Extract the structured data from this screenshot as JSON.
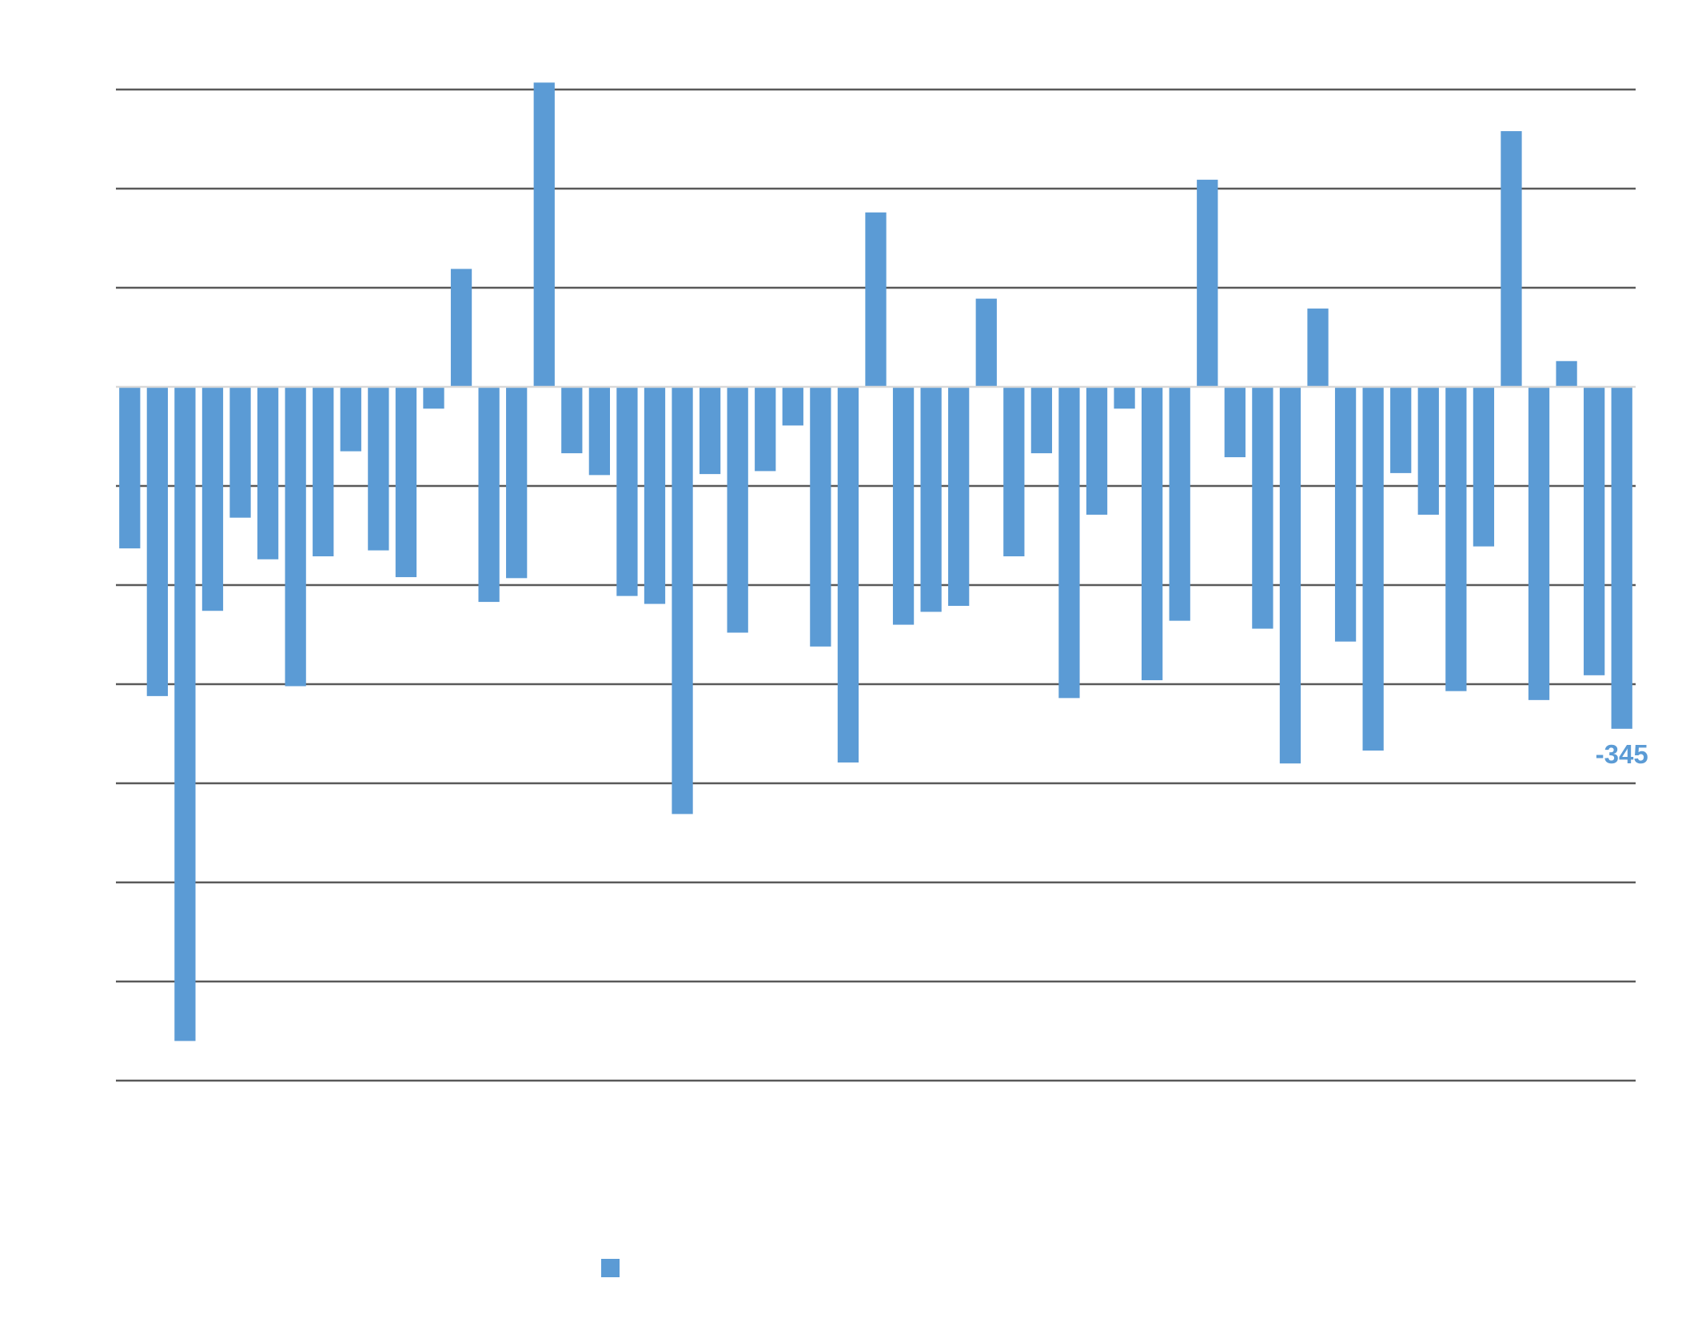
{
  "chart_data": {
    "type": "bar",
    "title": "",
    "xlabel": "",
    "ylabel": "",
    "ylim": [
      -700,
      300
    ],
    "grid": true,
    "legend_position": "bottom",
    "bar_color": "#5B9BD5",
    "gridline_color": "#595959",
    "zero_line_color": "#D9D9D9",
    "series": [
      {
        "name": "",
        "values": [
          -163,
          -312,
          -660,
          -226,
          -132,
          -174,
          -302,
          -171,
          -65,
          -165,
          -192,
          -22,
          119,
          -217,
          -193,
          307,
          -67,
          -89,
          -211,
          -219,
          -431,
          -88,
          -248,
          -85,
          -39,
          -262,
          -379,
          176,
          -240,
          -227,
          -221,
          89,
          -171,
          -67,
          -314,
          -129,
          -22,
          -296,
          -236,
          209,
          -71,
          -244,
          -380,
          79,
          -257,
          -367,
          -87,
          -129,
          -307,
          -161,
          258,
          -316,
          26,
          -291,
          -345
        ]
      }
    ],
    "data_labels": [
      {
        "index": 54,
        "text": "-345"
      }
    ]
  }
}
